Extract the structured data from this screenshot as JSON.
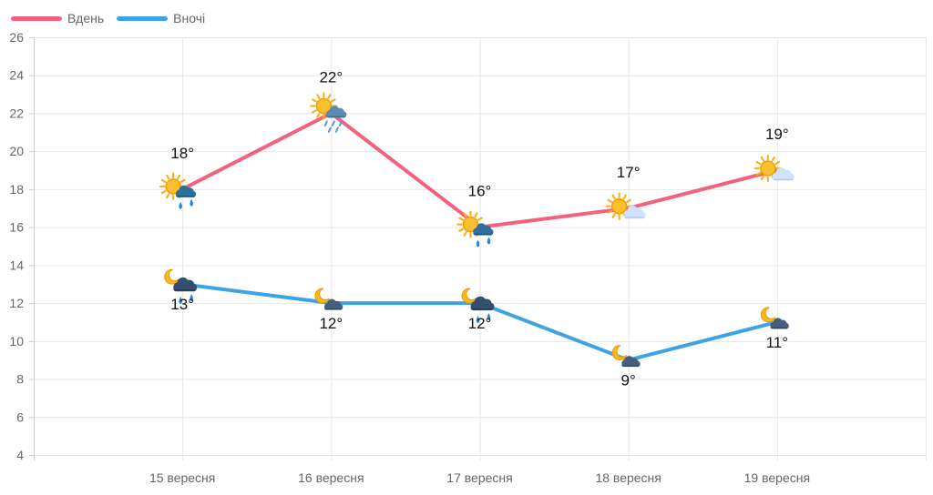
{
  "chart_data": {
    "type": "line",
    "categories": [
      "15 вересня",
      "16 вересня",
      "17 вересня",
      "18 вересня",
      "19 вересня"
    ],
    "ylim": [
      4,
      26
    ],
    "yticks": [
      4,
      6,
      8,
      10,
      12,
      14,
      16,
      18,
      20,
      22,
      24,
      26
    ],
    "grid": true,
    "legend_position": "top-left",
    "series": [
      {
        "name": "Вдень",
        "color": "#f4617f",
        "values": [
          18,
          22,
          16,
          17,
          19
        ],
        "labels": [
          "18°",
          "22°",
          "16°",
          "17°",
          "19°"
        ],
        "label_position": "above",
        "icons": [
          "sun-cloud-rain-icon",
          "sun-cloud-heavy-rain-icon",
          "sun-cloud-rain-icon",
          "sun-cloud-icon",
          "sun-cloud-icon"
        ]
      },
      {
        "name": "Вночі",
        "color": "#3ea3e5",
        "values": [
          13,
          12,
          12,
          9,
          11
        ],
        "labels": [
          "13°",
          "12°",
          "12°",
          "9°",
          "11°"
        ],
        "label_position": "below",
        "icons": [
          "moon-cloud-rain-icon",
          "moon-cloud-icon",
          "moon-cloud-rain-icon",
          "moon-cloud-icon",
          "moon-cloud-icon"
        ]
      }
    ]
  }
}
